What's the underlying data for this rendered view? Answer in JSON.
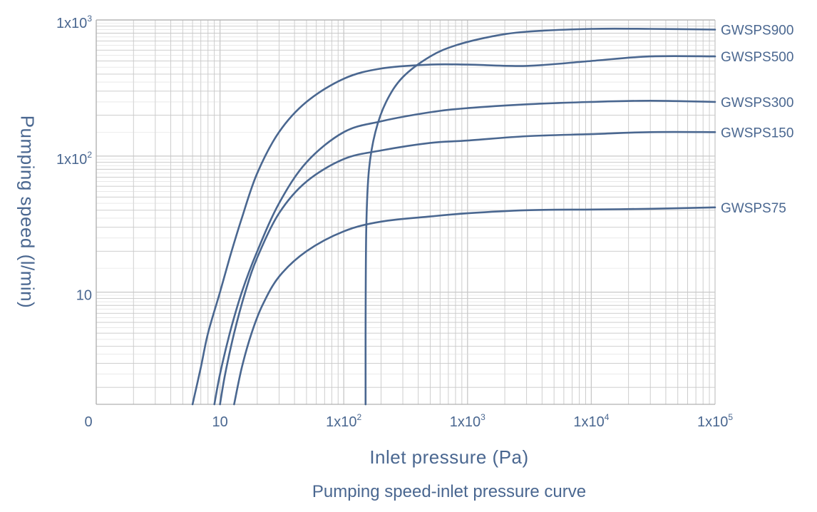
{
  "chart_data": {
    "type": "line",
    "title": "",
    "subtitle": "Pumping speed-inlet pressure curve",
    "xlabel": "Inlet pressure (Pa)",
    "ylabel": "Pumping speed (l/min)",
    "x_scale": "log",
    "y_scale": "log",
    "xlim": [
      1,
      100000
    ],
    "ylim": [
      1.5,
      1000
    ],
    "grid": true,
    "x_ticks": [
      {
        "value": 1,
        "base": "0",
        "exp": ""
      },
      {
        "value": 10,
        "base": "10",
        "exp": ""
      },
      {
        "value": 100,
        "base": "1x10",
        "exp": "2"
      },
      {
        "value": 1000,
        "base": "1x10",
        "exp": "3"
      },
      {
        "value": 10000,
        "base": "1x10",
        "exp": "4"
      },
      {
        "value": 100000,
        "base": "1x10",
        "exp": "5"
      }
    ],
    "y_ticks": [
      {
        "value": 10,
        "base": "10",
        "exp": ""
      },
      {
        "value": 100,
        "base": "1x10",
        "exp": "2"
      },
      {
        "value": 1000,
        "base": "1x10",
        "exp": "3"
      }
    ],
    "series": [
      {
        "name": "GWSPS900",
        "x": [
          150,
          150,
          152,
          160,
          180,
          220,
          300,
          500,
          800,
          1500,
          3000,
          10000,
          30000,
          100000
        ],
        "y": [
          1.5,
          5,
          30,
          80,
          150,
          250,
          380,
          540,
          650,
          750,
          820,
          860,
          860,
          850
        ]
      },
      {
        "name": "GWSPS500",
        "x": [
          6,
          7,
          8,
          10,
          12,
          15,
          20,
          30,
          50,
          100,
          200,
          500,
          1000,
          3000,
          10000,
          30000,
          100000
        ],
        "y": [
          1.5,
          2.8,
          5,
          10,
          18,
          35,
          75,
          150,
          250,
          370,
          440,
          470,
          470,
          460,
          500,
          540,
          540
        ]
      },
      {
        "name": "GWSPS300",
        "x": [
          9,
          10,
          12,
          15,
          20,
          30,
          50,
          100,
          200,
          500,
          1000,
          3000,
          10000,
          30000,
          100000
        ],
        "y": [
          1.5,
          2.5,
          5,
          10,
          20,
          45,
          90,
          150,
          180,
          210,
          225,
          240,
          250,
          255,
          250
        ]
      },
      {
        "name": "GWSPS150",
        "x": [
          10,
          11,
          13,
          16,
          20,
          30,
          50,
          100,
          200,
          500,
          1000,
          3000,
          10000,
          30000,
          100000
        ],
        "y": [
          1.5,
          2.5,
          5,
          10,
          18,
          38,
          65,
          95,
          110,
          125,
          130,
          140,
          145,
          150,
          150
        ]
      },
      {
        "name": "GWSPS75",
        "x": [
          13,
          15,
          18,
          22,
          30,
          50,
          100,
          200,
          500,
          1000,
          3000,
          10000,
          30000,
          100000
        ],
        "y": [
          1.5,
          2.8,
          5,
          8,
          13,
          20,
          28,
          33,
          36,
          38,
          40,
          40.5,
          41,
          42
        ]
      }
    ],
    "colors": {
      "line": "#4a6790",
      "grid": "#c8c8c8",
      "text": "#4a6790"
    }
  }
}
